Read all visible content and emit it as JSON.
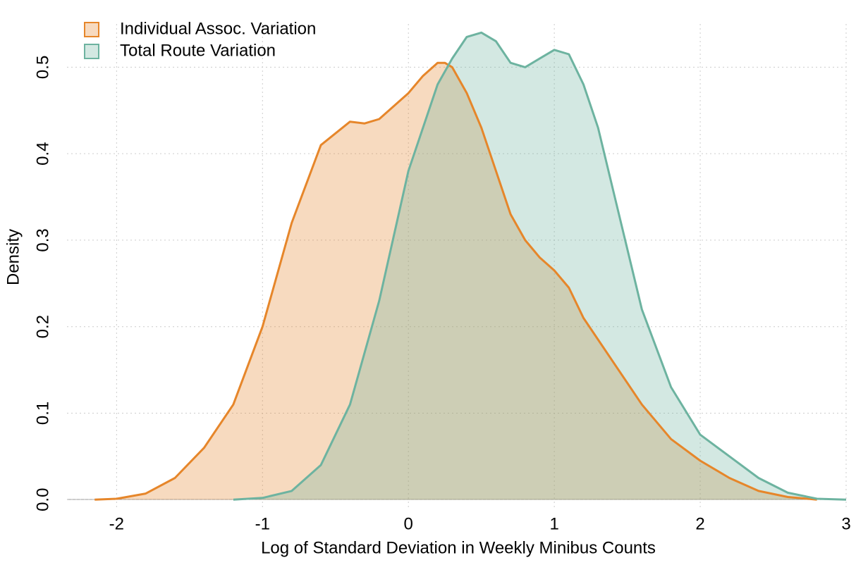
{
  "chart_data": {
    "type": "density",
    "x_label": "Log of Standard Deviation in Weekly Minibus Counts",
    "y_label": "Density",
    "xlim": [
      -2.34,
      3.0
    ],
    "ylim": [
      -0.01,
      0.55
    ],
    "xticks": [
      -2,
      -1,
      0,
      1,
      2,
      3
    ],
    "yticks": [
      {
        "value": 0,
        "label": "0.0"
      },
      0.1,
      0.2,
      0.3,
      0.4,
      0.5
    ],
    "grid": true,
    "legend": "top-left",
    "series": [
      {
        "name": "Individual Assoc. Variation",
        "color": "#e6862a",
        "x": [
          -2.15,
          -2.0,
          -1.8,
          -1.6,
          -1.4,
          -1.2,
          -1.0,
          -0.8,
          -0.6,
          -0.4,
          -0.3,
          -0.2,
          -0.1,
          0.0,
          0.1,
          0.2,
          0.25,
          0.3,
          0.4,
          0.5,
          0.6,
          0.7,
          0.8,
          0.9,
          1.0,
          1.1,
          1.2,
          1.4,
          1.6,
          1.8,
          2.0,
          2.2,
          2.4,
          2.6,
          2.8
        ],
        "values": [
          0.0,
          0.001,
          0.007,
          0.025,
          0.06,
          0.11,
          0.2,
          0.32,
          0.41,
          0.437,
          0.435,
          0.44,
          0.455,
          0.47,
          0.49,
          0.505,
          0.505,
          0.5,
          0.47,
          0.43,
          0.38,
          0.33,
          0.3,
          0.28,
          0.265,
          0.245,
          0.21,
          0.16,
          0.11,
          0.07,
          0.045,
          0.025,
          0.01,
          0.003,
          0.0
        ]
      },
      {
        "name": "Total Route Variation",
        "color": "#6db3a0",
        "x": [
          -1.2,
          -1.0,
          -0.8,
          -0.6,
          -0.4,
          -0.2,
          0.0,
          0.2,
          0.3,
          0.4,
          0.5,
          0.6,
          0.7,
          0.8,
          0.9,
          1.0,
          1.1,
          1.2,
          1.3,
          1.4,
          1.6,
          1.8,
          2.0,
          2.2,
          2.4,
          2.6,
          2.8,
          3.0
        ],
        "values": [
          0.0,
          0.002,
          0.01,
          0.04,
          0.11,
          0.23,
          0.38,
          0.48,
          0.51,
          0.535,
          0.54,
          0.53,
          0.505,
          0.5,
          0.51,
          0.52,
          0.515,
          0.48,
          0.43,
          0.36,
          0.22,
          0.13,
          0.075,
          0.05,
          0.025,
          0.008,
          0.001,
          0.0
        ]
      }
    ]
  }
}
